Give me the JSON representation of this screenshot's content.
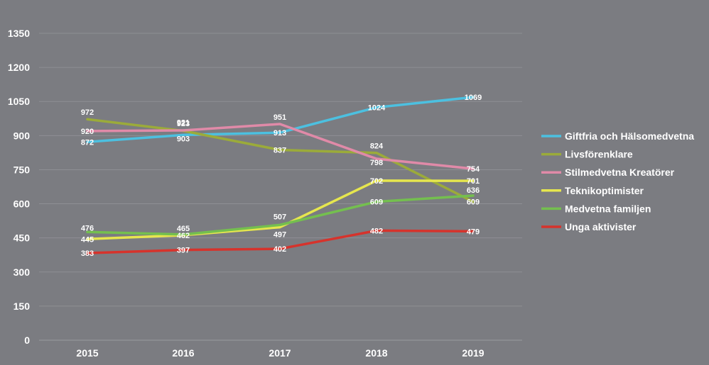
{
  "chart_data": {
    "type": "line",
    "title": "",
    "xlabel": "",
    "ylabel": "",
    "categories": [
      "2015",
      "2016",
      "2017",
      "2018",
      "2019"
    ],
    "ylim": [
      0,
      1350
    ],
    "yticks": [
      0,
      150,
      300,
      450,
      600,
      750,
      900,
      1050,
      1200,
      1350
    ],
    "grid": true,
    "legend_position": "right",
    "series": [
      {
        "name": "Giftfria och Hälsomedvetna",
        "color": "#4cc0e0",
        "values": [
          872,
          903,
          913,
          1024,
          1069
        ]
      },
      {
        "name": "Livsförenklare",
        "color": "#9bab3a",
        "values": [
          972,
          921,
          837,
          824,
          609
        ]
      },
      {
        "name": "Stilmedvetna Kreatörer",
        "color": "#e08aa8",
        "values": [
          920,
          923,
          951,
          798,
          754
        ]
      },
      {
        "name": "Teknikoptimister",
        "color": "#e6e64e",
        "values": [
          445,
          462,
          497,
          702,
          701
        ]
      },
      {
        "name": "Medvetna familjen",
        "color": "#74bf4f",
        "values": [
          476,
          465,
          507,
          609,
          636
        ]
      },
      {
        "name": "Unga aktivister",
        "color": "#d6332c",
        "values": [
          383,
          397,
          402,
          482,
          479
        ]
      }
    ]
  }
}
